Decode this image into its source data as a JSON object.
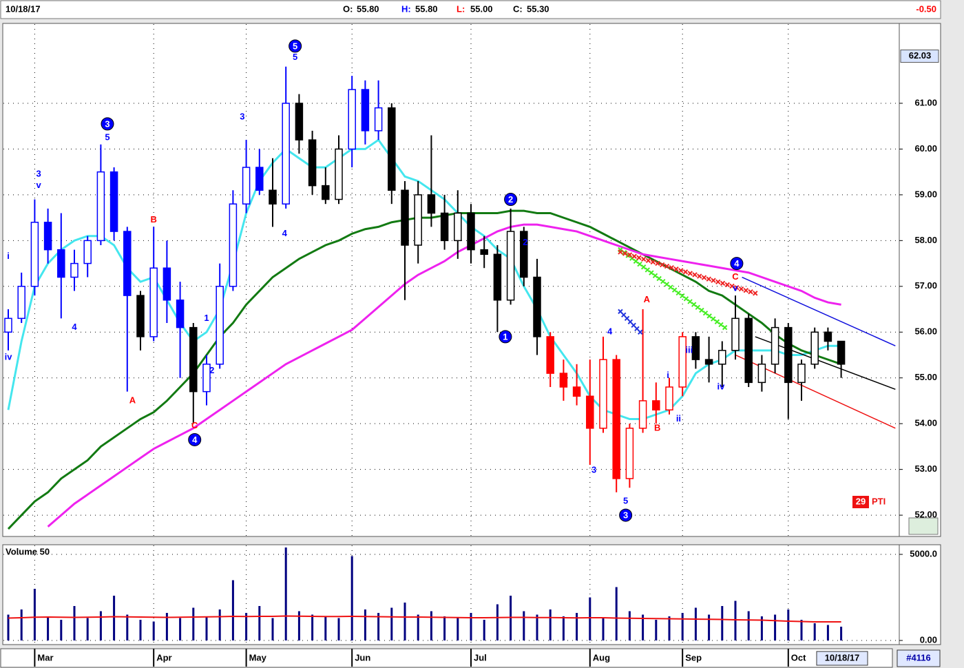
{
  "header": {
    "date": "10/18/17",
    "fields": [
      {
        "label": "O:",
        "value": "55.80",
        "color": "#000000"
      },
      {
        "label": "H:",
        "value": "55.80",
        "color": "#0000ff"
      },
      {
        "label": "L:",
        "value": "55.00",
        "color": "#ff0000"
      },
      {
        "label": "C:",
        "value": "55.30",
        "color": "#000000"
      }
    ],
    "change": "-0.50"
  },
  "pti": {
    "value": 29,
    "label": "PTI"
  },
  "footer": {
    "date": "10/18/17",
    "id": "#4116"
  },
  "chart_data": [
    {
      "type": "candlestick",
      "categories": [
        null,
        null,
        "Mar",
        null,
        null,
        null,
        null,
        null,
        null,
        null,
        null,
        "Apr",
        null,
        null,
        null,
        null,
        null,
        null,
        "May",
        null,
        null,
        null,
        null,
        null,
        null,
        null,
        "Jun",
        null,
        null,
        null,
        null,
        null,
        null,
        null,
        null,
        "Jul",
        null,
        null,
        null,
        null,
        null,
        null,
        null,
        null,
        "Aug",
        null,
        null,
        null,
        null,
        null,
        null,
        "Sep",
        null,
        null,
        null,
        null,
        null,
        null,
        null,
        "Oct",
        null,
        null,
        null,
        null
      ],
      "open": [
        56.0,
        56.3,
        57.0,
        58.4,
        57.8,
        57.2,
        57.5,
        58.0,
        59.5,
        58.2,
        56.8,
        55.9,
        57.4,
        56.7,
        56.1,
        54.7,
        55.3,
        57.0,
        58.8,
        59.6,
        59.1,
        58.8,
        61.0,
        60.2,
        59.2,
        58.9,
        60.0,
        61.3,
        60.4,
        60.9,
        59.1,
        57.9,
        59.0,
        58.6,
        58.0,
        58.6,
        57.8,
        57.7,
        56.7,
        58.2,
        57.2,
        55.9,
        55.1,
        54.8,
        54.6,
        53.9,
        55.4,
        52.8,
        53.9,
        54.5,
        54.3,
        54.8,
        55.9,
        55.4,
        55.3,
        55.6,
        56.3,
        54.9,
        55.3,
        56.1,
        54.9,
        55.3,
        56.0,
        55.8
      ],
      "high": [
        56.5,
        57.3,
        58.9,
        58.7,
        58.6,
        57.8,
        58.1,
        60.1,
        59.6,
        58.3,
        56.9,
        58.3,
        58.0,
        57.1,
        56.2,
        55.5,
        57.5,
        59.1,
        60.2,
        60.0,
        59.8,
        61.8,
        61.2,
        60.4,
        59.6,
        60.3,
        61.6,
        61.5,
        61.5,
        61.0,
        59.3,
        59.3,
        60.3,
        59.0,
        59.1,
        58.8,
        58.1,
        57.9,
        58.7,
        58.3,
        57.6,
        56.0,
        55.4,
        55.3,
        55.4,
        55.9,
        55.5,
        54.0,
        56.5,
        54.9,
        55.0,
        56.0,
        56.0,
        55.9,
        55.8,
        56.8,
        56.4,
        55.5,
        56.3,
        56.2,
        55.4,
        56.1,
        56.1,
        55.8
      ],
      "low": [
        55.6,
        56.2,
        56.8,
        57.5,
        56.3,
        56.9,
        57.2,
        57.9,
        58.0,
        54.7,
        55.6,
        55.8,
        56.2,
        55.0,
        54.0,
        54.4,
        55.2,
        56.9,
        58.6,
        59.0,
        58.3,
        58.7,
        59.9,
        59.0,
        58.8,
        58.8,
        59.6,
        60.1,
        60.2,
        58.8,
        56.7,
        57.5,
        58.3,
        57.8,
        57.6,
        57.5,
        57.4,
        56.0,
        56.6,
        57.0,
        55.5,
        54.8,
        54.5,
        54.4,
        53.1,
        53.8,
        52.5,
        52.6,
        53.8,
        54.0,
        54.2,
        54.6,
        55.2,
        54.9,
        54.8,
        55.4,
        54.8,
        54.7,
        55.1,
        54.1,
        54.5,
        55.2,
        55.6,
        55.0
      ],
      "close": [
        56.3,
        57.0,
        58.4,
        57.8,
        57.2,
        57.5,
        58.0,
        59.5,
        58.2,
        56.8,
        55.9,
        57.4,
        56.7,
        56.1,
        54.7,
        55.3,
        57.0,
        58.8,
        59.6,
        59.1,
        58.8,
        61.0,
        60.2,
        59.2,
        58.9,
        60.0,
        61.3,
        60.4,
        60.9,
        59.1,
        57.9,
        59.0,
        58.6,
        58.0,
        58.6,
        57.8,
        57.7,
        56.7,
        58.2,
        57.2,
        55.9,
        55.1,
        54.8,
        54.6,
        53.9,
        55.4,
        52.8,
        53.9,
        54.5,
        54.3,
        54.8,
        55.9,
        55.4,
        55.3,
        55.6,
        56.3,
        54.9,
        55.3,
        56.1,
        54.9,
        55.3,
        56.0,
        55.8,
        55.3
      ],
      "candle_colors": [
        "#0000ff",
        "#0000ff",
        "#0000ff",
        "#0000ff",
        "#0000ff",
        "#0000ff",
        "#0000ff",
        "#0000ff",
        "#0000ff",
        "#0000ff",
        "#000000",
        "#0000ff",
        "#0000ff",
        "#0000ff",
        "#000000",
        "#0000ff",
        "#0000ff",
        "#0000ff",
        "#0000ff",
        "#0000ff",
        "#000000",
        "#0000ff",
        "#000000",
        "#000000",
        "#000000",
        "#000000",
        "#0000ff",
        "#0000ff",
        "#0000ff",
        "#000000",
        "#000000",
        "#000000",
        "#000000",
        "#000000",
        "#000000",
        "#000000",
        "#000000",
        "#000000",
        "#000000",
        "#000000",
        "#000000",
        "#ff0000",
        "#ff0000",
        "#ff0000",
        "#ff0000",
        "#ff0000",
        "#ff0000",
        "#ff0000",
        "#ff0000",
        "#ff0000",
        "#ff0000",
        "#ff0000",
        "#000000",
        "#000000",
        "#000000",
        "#000000",
        "#000000",
        "#000000",
        "#000000",
        "#000000",
        "#000000",
        "#000000",
        "#000000",
        "#000000"
      ],
      "lines": [
        {
          "color": "#44e6ee",
          "values": [
            54.3,
            55.8,
            57.0,
            57.5,
            57.8,
            58.0,
            58.1,
            58.1,
            57.9,
            57.4,
            57.1,
            57.2,
            56.7,
            56.2,
            55.8,
            56.0,
            56.5,
            57.5,
            58.6,
            59.3,
            59.7,
            60.0,
            59.8,
            59.6,
            59.6,
            59.8,
            60.0,
            60.0,
            60.2,
            59.8,
            59.4,
            59.3,
            59.1,
            58.9,
            58.6,
            58.3,
            58.1,
            57.8,
            57.6,
            57.0,
            56.5,
            55.9,
            55.5,
            55.1,
            54.6,
            54.3,
            54.2,
            54.1,
            54.1,
            54.2,
            54.3,
            54.6,
            55.1,
            55.3,
            55.4,
            55.6,
            55.6,
            55.6,
            55.6,
            55.5,
            55.5,
            55.6,
            55.7,
            55.7
          ]
        },
        {
          "color": "#127a12",
          "values": [
            51.7,
            52.0,
            52.3,
            52.5,
            52.8,
            53.0,
            53.2,
            53.5,
            53.7,
            53.9,
            54.1,
            54.25,
            54.5,
            54.8,
            55.1,
            55.5,
            55.9,
            56.2,
            56.6,
            56.9,
            57.2,
            57.4,
            57.6,
            57.75,
            57.9,
            58.0,
            58.15,
            58.25,
            58.3,
            58.4,
            58.45,
            58.5,
            58.5,
            58.55,
            58.6,
            58.6,
            58.6,
            58.6,
            58.65,
            58.65,
            58.6,
            58.6,
            58.5,
            58.4,
            58.3,
            58.15,
            58.0,
            57.85,
            57.7,
            57.55,
            57.4,
            57.25,
            57.1,
            56.9,
            56.8,
            56.6,
            56.4,
            56.2,
            55.95,
            55.75,
            55.6,
            55.5,
            55.4,
            55.3
          ]
        },
        {
          "color": "#ee22ee",
          "values": [
            null,
            null,
            null,
            51.75,
            52.0,
            52.25,
            52.45,
            52.65,
            52.85,
            53.05,
            53.25,
            53.45,
            53.6,
            53.75,
            53.9,
            54.1,
            54.3,
            54.5,
            54.7,
            54.9,
            55.1,
            55.3,
            55.45,
            55.6,
            55.75,
            55.9,
            56.05,
            56.3,
            56.55,
            56.8,
            57.05,
            57.25,
            57.4,
            57.55,
            57.75,
            57.9,
            58.05,
            58.2,
            58.3,
            58.35,
            58.35,
            58.3,
            58.25,
            58.2,
            58.1,
            58.0,
            57.9,
            57.8,
            57.7,
            57.65,
            57.6,
            57.55,
            57.5,
            57.45,
            57.4,
            57.35,
            57.3,
            57.2,
            57.1,
            57.0,
            56.9,
            56.75,
            56.65,
            56.6
          ]
        }
      ],
      "trendlines": [
        {
          "color": "#1010dd",
          "from": [
            55.5,
            57.2
          ],
          "to": [
            67.1,
            55.7
          ]
        },
        {
          "color": "#000000",
          "from": [
            56.5,
            55.9
          ],
          "to": [
            67.1,
            54.75
          ]
        },
        {
          "color": "#ee1111",
          "from": [
            55,
            55.5
          ],
          "to": [
            67.1,
            53.9
          ]
        }
      ],
      "x_markers": [
        {
          "color": "#44ee22",
          "from": [
            46.3,
            57.8
          ],
          "to": [
            54.2,
            56.1
          ]
        },
        {
          "color": "#ee2222",
          "from": [
            46.3,
            57.75
          ],
          "to": [
            56.5,
            56.85
          ]
        },
        {
          "color": "#2233dd",
          "from": [
            46.3,
            56.45
          ],
          "to": [
            47.8,
            56.0
          ]
        }
      ],
      "annotations": [
        {
          "text": "i",
          "x": 0,
          "y": 57.65,
          "color": "#0000ff",
          "circled": false
        },
        {
          "text": "iv",
          "x": 0,
          "y": 55.45,
          "color": "#0000ff",
          "circled": false
        },
        {
          "text": "3",
          "x": 2.3,
          "y": 59.45,
          "color": "#0000ff",
          "circled": false
        },
        {
          "text": "v",
          "x": 2.3,
          "y": 59.2,
          "color": "#0000ff",
          "circled": false
        },
        {
          "text": "4",
          "x": 5,
          "y": 56.1,
          "color": "#0000ff",
          "circled": false
        },
        {
          "text": "3",
          "x": 7.5,
          "y": 60.55,
          "color": "#0000ff",
          "circled": true
        },
        {
          "text": "5",
          "x": 7.5,
          "y": 60.25,
          "color": "#0000ff",
          "circled": false
        },
        {
          "text": "B",
          "x": 11,
          "y": 58.45,
          "color": "#ff0000",
          "circled": false
        },
        {
          "text": "A",
          "x": 9.4,
          "y": 54.5,
          "color": "#ff0000",
          "circled": false
        },
        {
          "text": "C",
          "x": 14.1,
          "y": 53.95,
          "color": "#ff0000",
          "circled": false
        },
        {
          "text": "4",
          "x": 14.1,
          "y": 53.65,
          "color": "#0000ff",
          "circled": true
        },
        {
          "text": "1",
          "x": 15,
          "y": 56.3,
          "color": "#0000ff",
          "circled": false
        },
        {
          "text": "2",
          "x": 15.4,
          "y": 55.15,
          "color": "#0000ff",
          "circled": false
        },
        {
          "text": "3",
          "x": 17.7,
          "y": 60.7,
          "color": "#0000ff",
          "circled": false
        },
        {
          "text": "5",
          "x": 21.7,
          "y": 62.25,
          "color": "#0000ff",
          "circled": true
        },
        {
          "text": "5",
          "x": 21.7,
          "y": 62.0,
          "color": "#0000ff",
          "circled": false
        },
        {
          "text": "4",
          "x": 20.9,
          "y": 58.15,
          "color": "#0000ff",
          "circled": false
        },
        {
          "text": "2",
          "x": 38,
          "y": 58.9,
          "color": "#0000ff",
          "circled": true
        },
        {
          "text": "2",
          "x": 39.1,
          "y": 57.95,
          "color": "#0000ff",
          "circled": false
        },
        {
          "text": "1",
          "x": 37.6,
          "y": 55.9,
          "color": "#0000ff",
          "circled": true
        },
        {
          "text": "3",
          "x": 44.3,
          "y": 52.98,
          "color": "#0000ff",
          "circled": false
        },
        {
          "text": "4",
          "x": 45.5,
          "y": 56.0,
          "color": "#0000ff",
          "circled": false
        },
        {
          "text": "5",
          "x": 46.7,
          "y": 52.3,
          "color": "#0000ff",
          "circled": false
        },
        {
          "text": "3",
          "x": 46.7,
          "y": 52.0,
          "color": "#0000ff",
          "circled": true
        },
        {
          "text": "A",
          "x": 48.3,
          "y": 56.7,
          "color": "#ff0000",
          "circled": false
        },
        {
          "text": "B",
          "x": 49.1,
          "y": 53.9,
          "color": "#ff0000",
          "circled": false
        },
        {
          "text": "i",
          "x": 49.9,
          "y": 55.05,
          "color": "#0000ff",
          "circled": false
        },
        {
          "text": "ii",
          "x": 50.7,
          "y": 54.1,
          "color": "#0000ff",
          "circled": false
        },
        {
          "text": "iii",
          "x": 51.5,
          "y": 55.6,
          "color": "#0000ff",
          "circled": false
        },
        {
          "text": "iv",
          "x": 53.9,
          "y": 54.8,
          "color": "#0000ff",
          "circled": false
        },
        {
          "text": "C",
          "x": 55,
          "y": 57.2,
          "color": "#ff0000",
          "circled": false
        },
        {
          "text": "v",
          "x": 55,
          "y": 56.95,
          "color": "#0000ff",
          "circled": false
        },
        {
          "text": "4",
          "x": 55.1,
          "y": 57.5,
          "color": "#0000ff",
          "circled": true
        }
      ],
      "ylim": [
        51.55,
        62.73
      ],
      "yticks": [
        {
          "value": 52,
          "label": "52.00"
        },
        {
          "value": 53,
          "label": "53.00"
        },
        {
          "value": 54,
          "label": "54.00"
        },
        {
          "value": 55,
          "label": "55.00"
        },
        {
          "value": 56,
          "label": "56.00"
        },
        {
          "value": 57,
          "label": "57.00"
        },
        {
          "value": 58,
          "label": "58.00"
        },
        {
          "value": 59,
          "label": "59.00"
        },
        {
          "value": 60,
          "label": "60.00"
        },
        {
          "value": 61,
          "label": "61.00"
        }
      ],
      "price_marker": 62.03,
      "grid": true
    },
    {
      "type": "bar",
      "title": "Volume 50",
      "color": "#000080",
      "values": [
        1500,
        1800,
        3000,
        1400,
        1200,
        2000,
        1300,
        1700,
        2600,
        1500,
        1200,
        1100,
        1600,
        1300,
        1900,
        1400,
        1800,
        3500,
        1600,
        2000,
        1300,
        5400,
        1700,
        1500,
        1400,
        1300,
        4900,
        1800,
        1600,
        1900,
        2200,
        1500,
        1700,
        1400,
        1300,
        1600,
        1200,
        2100,
        2600,
        1700,
        1500,
        1800,
        1400,
        1600,
        2500,
        1300,
        3100,
        1700,
        1500,
        1200,
        1400,
        1600,
        1900,
        1500,
        2000,
        2300,
        1700,
        1400,
        1500,
        1800,
        1200,
        1000,
        900,
        800
      ],
      "average": {
        "color": "#ee1111",
        "values": [
          1300,
          1320,
          1350,
          1360,
          1350,
          1340,
          1350,
          1360,
          1380,
          1370,
          1360,
          1350,
          1340,
          1350,
          1360,
          1370,
          1380,
          1400,
          1390,
          1400,
          1400,
          1420,
          1410,
          1400,
          1390,
          1390,
          1400,
          1390,
          1380,
          1370,
          1360,
          1360,
          1350,
          1340,
          1330,
          1320,
          1320,
          1330,
          1340,
          1340,
          1330,
          1330,
          1320,
          1310,
          1320,
          1320,
          1300,
          1290,
          1280,
          1270,
          1260,
          1250,
          1240,
          1230,
          1220,
          1200,
          1190,
          1180,
          1150,
          1120,
          1100,
          1080,
          1080,
          1080
        ]
      },
      "ylim": [
        -200,
        5520
      ],
      "yticks": [
        {
          "value": 0,
          "label": "0.00"
        },
        {
          "value": 5000,
          "label": "5000.0"
        }
      ],
      "grid": true
    }
  ]
}
